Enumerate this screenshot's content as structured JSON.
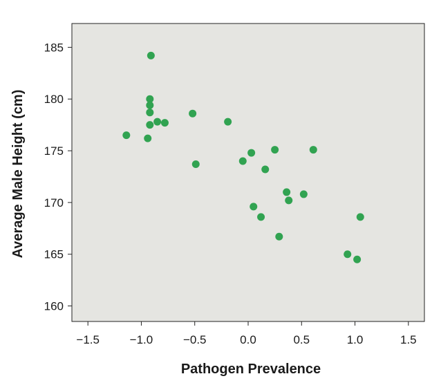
{
  "chart_data": {
    "type": "scatter",
    "title": "",
    "xlabel": "Pathogen Prevalence",
    "ylabel": "Average Male Height (cm)",
    "xlim": [
      -1.65,
      1.65
    ],
    "ylim": [
      158.5,
      187.3
    ],
    "x_ticks": [
      -1.5,
      -1.0,
      -0.5,
      0.0,
      0.5,
      1.0,
      1.5
    ],
    "x_tick_labels": [
      "−1.5",
      "−1.0",
      "−0.5",
      "0.0",
      "0.5",
      "1.0",
      "1.5"
    ],
    "y_ticks": [
      160,
      165,
      170,
      175,
      180,
      185
    ],
    "y_tick_labels": [
      "160",
      "165",
      "170",
      "175",
      "180",
      "185"
    ],
    "grid": false,
    "colors": {
      "plot_background": "#e5e5e1",
      "point": "#31a351",
      "axis": "#222222"
    },
    "points": [
      {
        "x": -0.91,
        "y": 184.2
      },
      {
        "x": -0.92,
        "y": 180.0
      },
      {
        "x": -0.92,
        "y": 179.4
      },
      {
        "x": -0.92,
        "y": 178.7
      },
      {
        "x": -0.85,
        "y": 177.8
      },
      {
        "x": -0.78,
        "y": 177.7
      },
      {
        "x": -0.92,
        "y": 177.5
      },
      {
        "x": -1.14,
        "y": 176.5
      },
      {
        "x": -0.94,
        "y": 176.2
      },
      {
        "x": -0.52,
        "y": 178.6
      },
      {
        "x": -0.49,
        "y": 173.7
      },
      {
        "x": -0.19,
        "y": 177.8
      },
      {
        "x": -0.05,
        "y": 174.0
      },
      {
        "x": 0.03,
        "y": 174.8
      },
      {
        "x": 0.16,
        "y": 173.2
      },
      {
        "x": 0.25,
        "y": 175.1
      },
      {
        "x": 0.61,
        "y": 175.1
      },
      {
        "x": 0.36,
        "y": 171.0
      },
      {
        "x": 0.38,
        "y": 170.2
      },
      {
        "x": 0.52,
        "y": 170.8
      },
      {
        "x": 0.05,
        "y": 169.6
      },
      {
        "x": 0.12,
        "y": 168.6
      },
      {
        "x": 0.29,
        "y": 166.7
      },
      {
        "x": 0.93,
        "y": 165.0
      },
      {
        "x": 1.02,
        "y": 164.5
      },
      {
        "x": 1.05,
        "y": 168.6
      }
    ]
  }
}
